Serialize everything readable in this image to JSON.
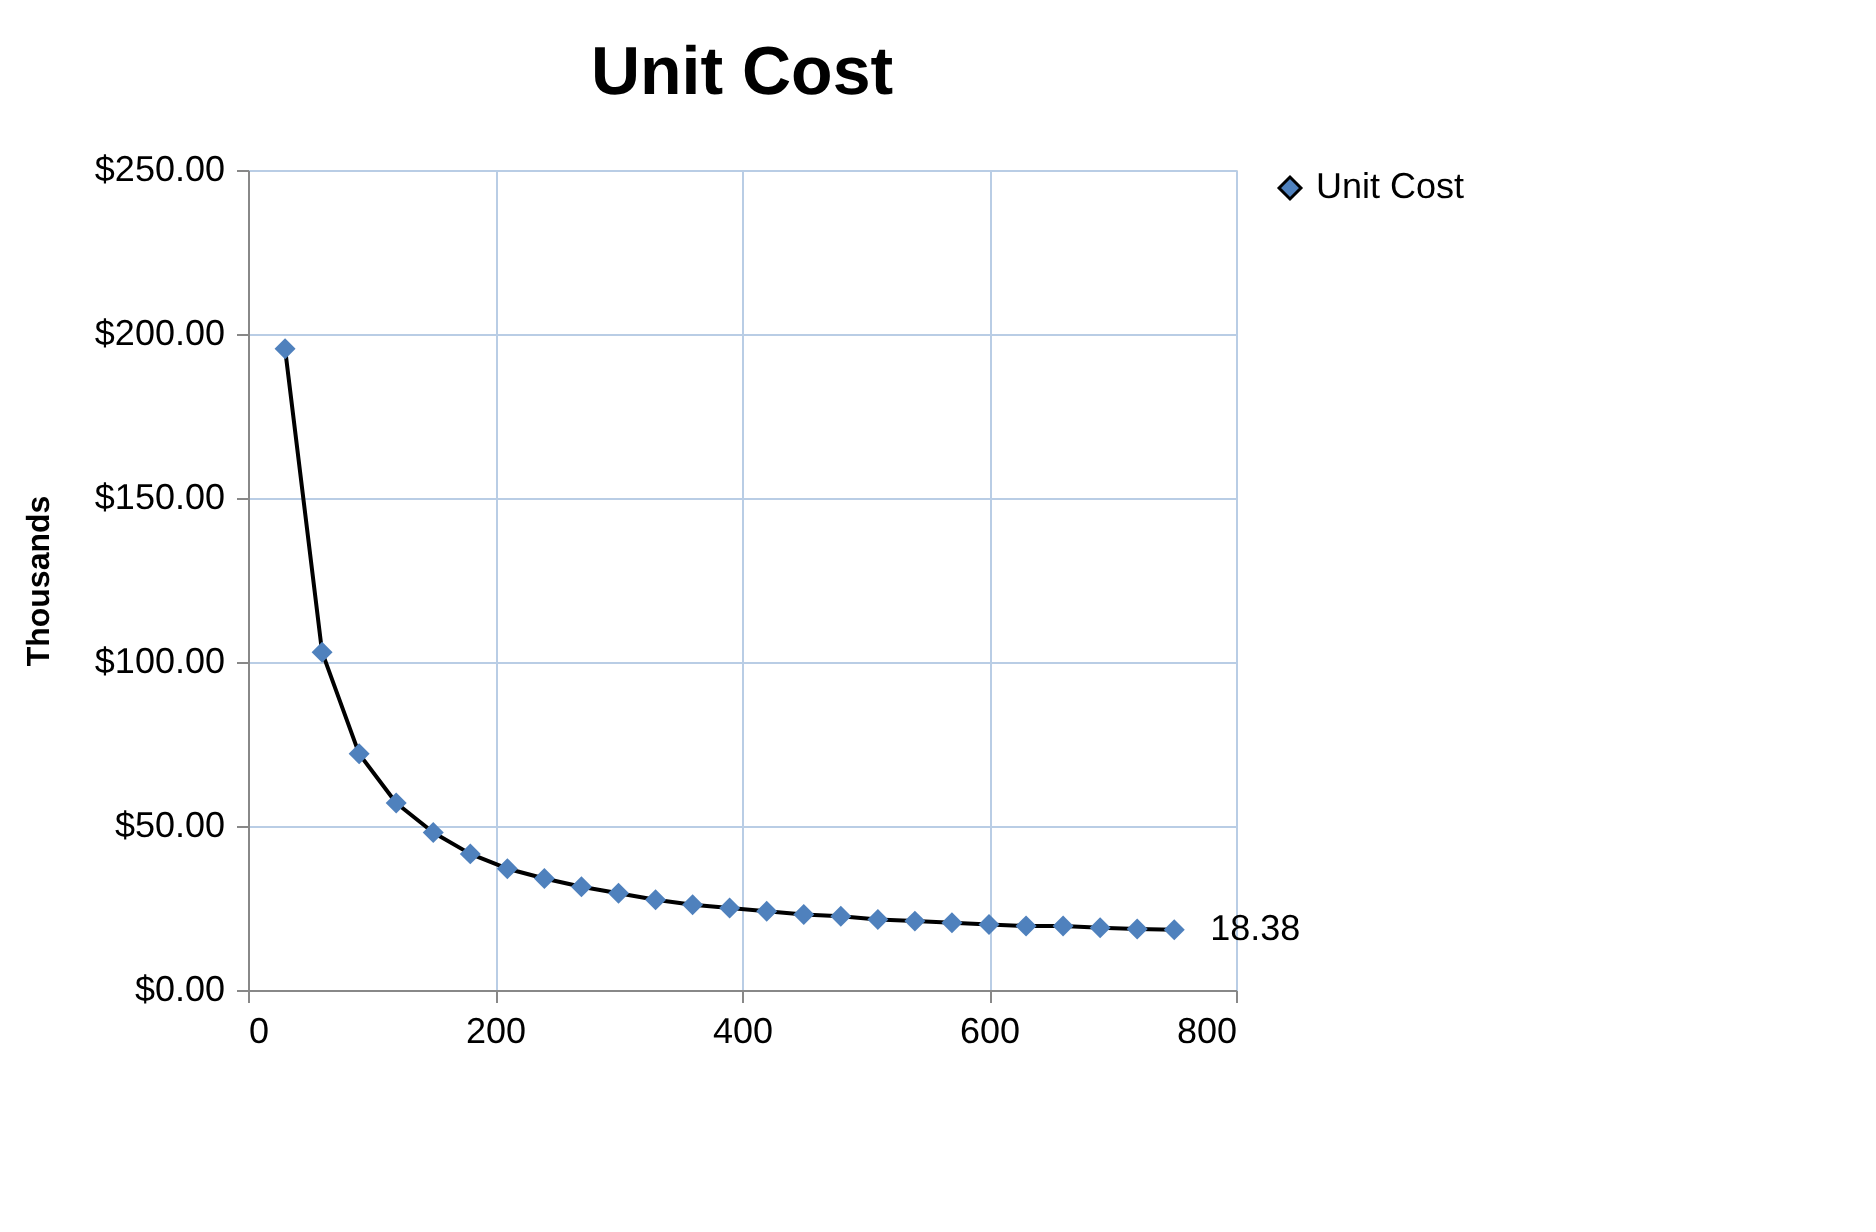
{
  "chart_data": {
    "type": "line",
    "title": "Unit Cost",
    "ylabel": "Thousands",
    "x": [
      30,
      60,
      90,
      120,
      150,
      180,
      210,
      240,
      270,
      300,
      330,
      360,
      390,
      420,
      450,
      480,
      510,
      540,
      570,
      600,
      630,
      660,
      690,
      720,
      750
    ],
    "series": [
      {
        "name": "Unit Cost",
        "color": "#4f81bd",
        "values": [
          195.5,
          103,
          72,
          57,
          48,
          41.5,
          37,
          34,
          31.5,
          29.5,
          27.5,
          26,
          25,
          24,
          23,
          22.5,
          21.5,
          21,
          20.5,
          20,
          19.5,
          19.5,
          19,
          18.6,
          18.38
        ],
        "value_labels": [
          null,
          null,
          null,
          null,
          null,
          null,
          null,
          null,
          null,
          null,
          null,
          null,
          null,
          null,
          null,
          null,
          null,
          null,
          null,
          null,
          null,
          null,
          null,
          null,
          "18.38"
        ]
      }
    ],
    "xlim": [
      0,
      800
    ],
    "xticks": [
      0,
      200,
      400,
      600,
      800
    ],
    "ylim": [
      0,
      250
    ],
    "yticks": [
      {
        "value": 0,
        "label": "$0.00"
      },
      {
        "value": 50,
        "label": "$50.00"
      },
      {
        "value": 100,
        "label": "$100.00"
      },
      {
        "value": 150,
        "label": "$150.00"
      },
      {
        "value": 200,
        "label": "$200.00"
      },
      {
        "value": 250,
        "label": "$250.00"
      }
    ],
    "grid": true,
    "legend": "right",
    "marker": "diamond",
    "line_style": "solid"
  }
}
